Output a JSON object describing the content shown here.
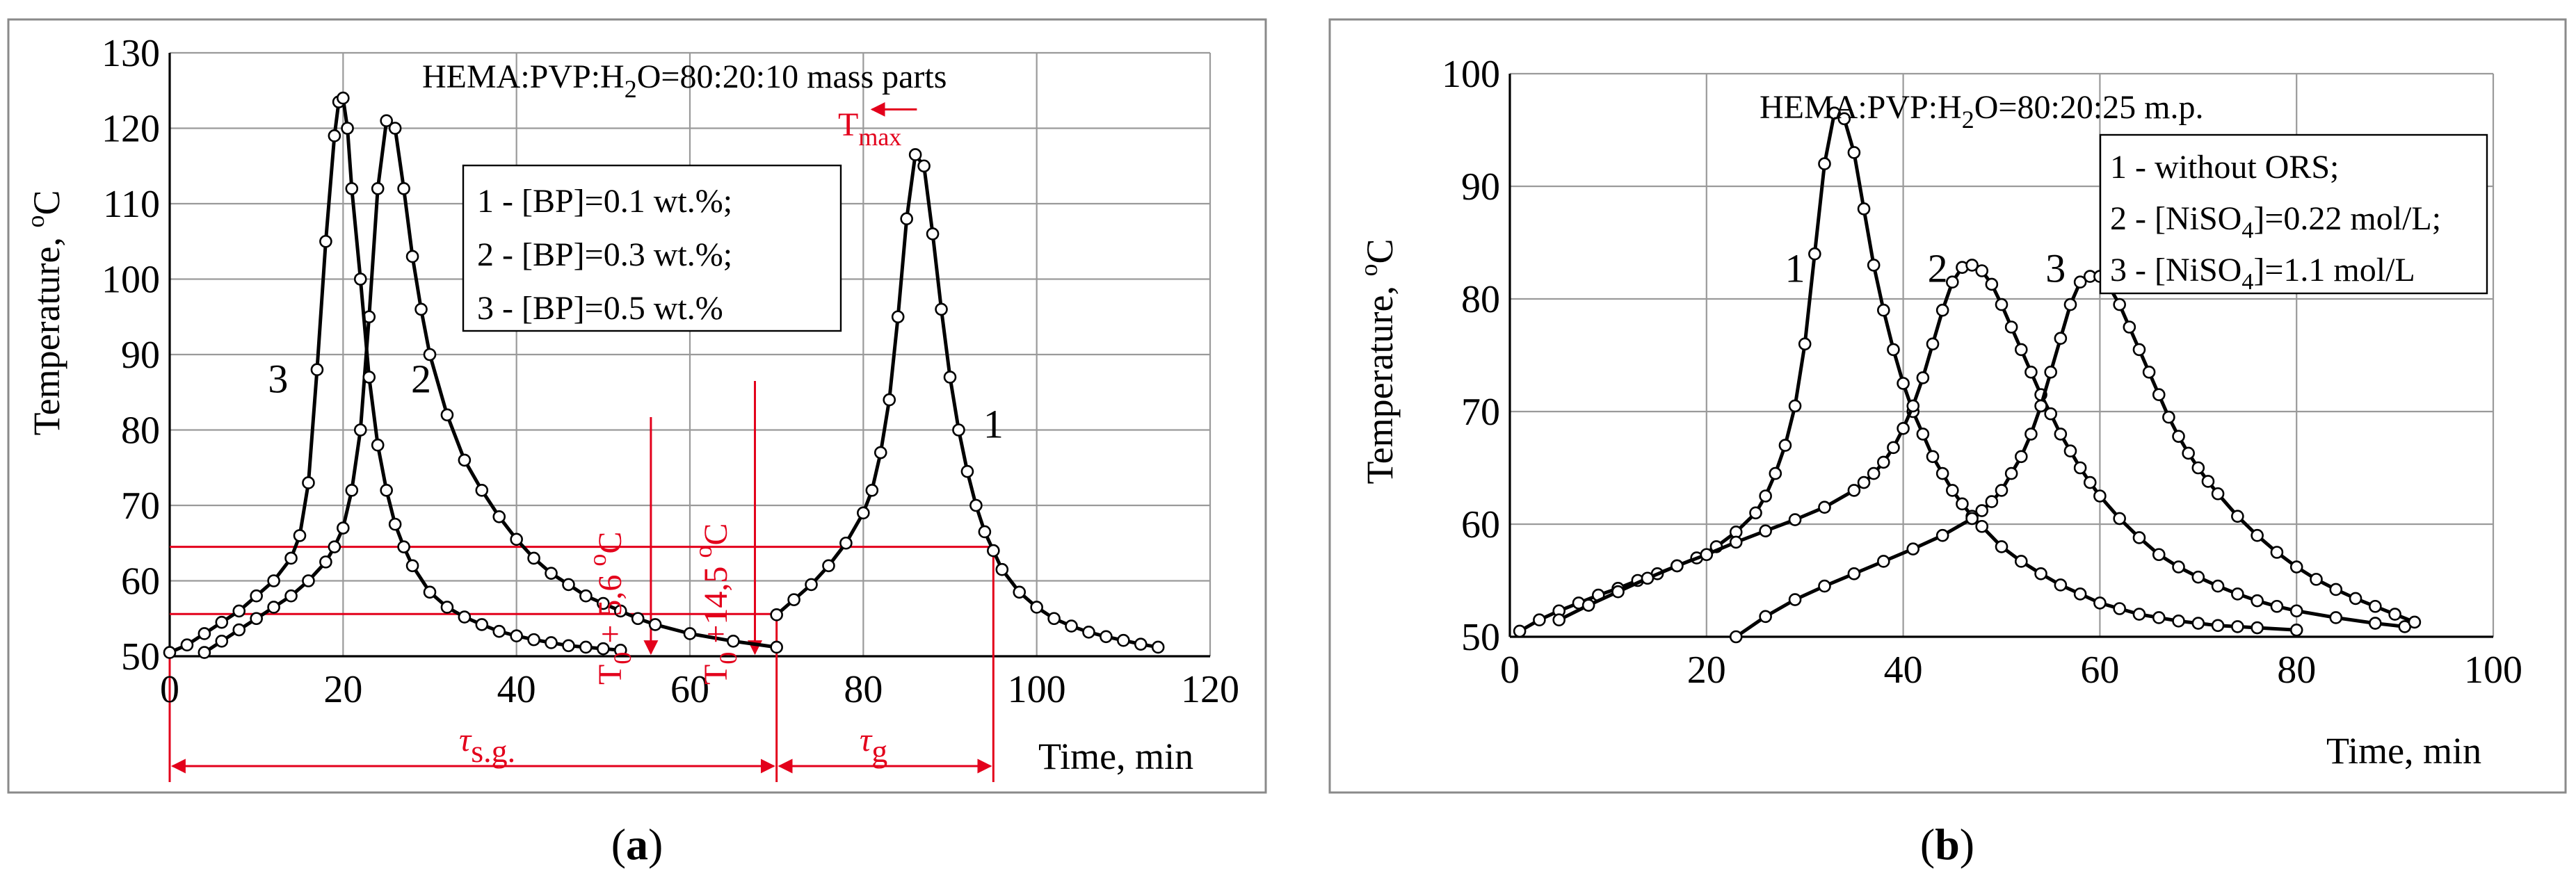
{
  "panels": [
    {
      "id": "a",
      "caption_pre": "(",
      "caption_letter": "a",
      "caption_post": ")",
      "title_pre": "HEMA:PVP:H",
      "title_sub": "2",
      "title_post": "O=80:20:10 mass parts",
      "ylabel_pre": "Temperature, ",
      "ylabel_sup": "o",
      "ylabel_post": "C",
      "xlabel": "Time, min",
      "x_ticks": [
        "0",
        "20",
        "40",
        "60",
        "80",
        "100",
        "120"
      ],
      "y_ticks": [
        "50",
        "60",
        "70",
        "80",
        "90",
        "100",
        "110",
        "120",
        "130"
      ],
      "legend": [
        "1 - [BP]=0.1 wt.%;",
        "2 - [BP]=0.3 wt.%;",
        "3 - [BP]=0.5 wt.%"
      ],
      "annotations": {
        "tmax_main": "T",
        "tmax_sub": "max",
        "t0_low_pre": "T",
        "t0_low_sub": "0",
        "t0_low_mid": " + 5,6 ",
        "t0_low_sup": "o",
        "t0_low_post": "C",
        "t0_high_pre": "T",
        "t0_high_sub": "0",
        "t0_high_mid": " +14,5 ",
        "t0_high_sup": "o",
        "t0_high_post": "C",
        "tau_sg_main": "τ",
        "tau_sg_sub": "s.g.",
        "tau_g_main": "τ",
        "tau_g_sub": "g"
      },
      "accent_color": "#e3001b"
    },
    {
      "id": "b",
      "caption_pre": "(",
      "caption_letter": "b",
      "caption_post": ")",
      "title_pre": "HEMA:PVP:H",
      "title_sub": "2",
      "title_post": "O=80:20:25 m.p.",
      "ylabel_pre": "Temperature, ",
      "ylabel_sup": "o",
      "ylabel_post": "C",
      "xlabel": "Time, min",
      "x_ticks": [
        "0",
        "20",
        "40",
        "60",
        "80",
        "100"
      ],
      "y_ticks": [
        "50",
        "60",
        "70",
        "80",
        "90",
        "100"
      ],
      "legend_1": "1 - without ORS;",
      "legend_2_pre": "2 - [NiSO",
      "legend_2_sub": "4",
      "legend_2_post": "]=0.22 mol/L;",
      "legend_3_pre": "3 - [NiSO",
      "legend_3_sub": "4",
      "legend_3_post": "]=1.1 mol/L"
    }
  ],
  "chart_data": [
    {
      "type": "line",
      "panel": "a",
      "title": "HEMA:PVP:H2O=80:20:10 mass parts",
      "xlabel": "Time, min",
      "ylabel": "Temperature, oC",
      "xlim": [
        0,
        120
      ],
      "ylim": [
        50,
        130
      ],
      "grid": true,
      "legend_position": "upper-middle",
      "series": [
        {
          "name": "1 - [BP]=0.1 wt.%;",
          "label": "1",
          "label_at": [
            95,
            79
          ],
          "x": [
            70,
            72,
            74,
            76,
            78,
            80,
            81,
            82,
            83,
            84,
            85,
            86,
            87,
            88,
            89,
            90,
            91,
            92,
            93,
            94,
            95,
            96,
            98,
            100,
            102,
            104,
            106,
            108,
            110,
            112,
            114
          ],
          "y": [
            55.5,
            57.5,
            59.5,
            62,
            65,
            69,
            72,
            77,
            84,
            95,
            108,
            116.5,
            115,
            106,
            96,
            87,
            80,
            74.5,
            70,
            66.5,
            64,
            61.5,
            58.5,
            56.5,
            55,
            54,
            53.2,
            52.6,
            52.1,
            51.6,
            51.2
          ]
        },
        {
          "name": "2 - [BP]=0.3 wt.%;",
          "label": "2",
          "label_at": [
            29,
            85
          ],
          "x": [
            4,
            6,
            8,
            10,
            12,
            14,
            16,
            18,
            19,
            20,
            21,
            22,
            23,
            24,
            25,
            26,
            27,
            28,
            29,
            30,
            32,
            34,
            36,
            38,
            40,
            42,
            44,
            46,
            48,
            50,
            52,
            54,
            56,
            60,
            65,
            70
          ],
          "y": [
            50.5,
            52,
            53.5,
            55,
            56.5,
            58,
            60,
            62.5,
            64.5,
            67,
            72,
            80,
            95,
            112,
            121,
            120,
            112,
            103,
            96,
            90,
            82,
            76,
            72,
            68.5,
            65.5,
            63,
            61,
            59.5,
            58,
            57,
            56,
            55,
            54.2,
            53,
            52,
            51.2
          ]
        },
        {
          "name": "3 - [BP]=0.5 wt.%",
          "label": "3",
          "label_at": [
            12.5,
            85
          ],
          "x": [
            0,
            2,
            4,
            6,
            8,
            10,
            12,
            14,
            15,
            16,
            17,
            18,
            19,
            19.5,
            20,
            20.5,
            21,
            22,
            23,
            24,
            25,
            26,
            27,
            28,
            30,
            32,
            34,
            36,
            38,
            40,
            42,
            44,
            46,
            48,
            50,
            52
          ],
          "y": [
            50.5,
            51.5,
            53,
            54.5,
            56,
            58,
            60,
            63,
            66,
            73,
            88,
            105,
            119,
            123.5,
            124,
            120,
            112,
            100,
            87,
            78,
            72,
            67.5,
            64.5,
            62,
            58.5,
            56.5,
            55.2,
            54.2,
            53.3,
            52.7,
            52.2,
            51.8,
            51.4,
            51.2,
            51,
            50.8
          ]
        }
      ]
    },
    {
      "type": "line",
      "panel": "b",
      "title": "HEMA:PVP:H2O=80:20:25 m.p.",
      "xlabel": "Time, min",
      "ylabel": "Temperature, oC",
      "xlim": [
        0,
        100
      ],
      "ylim": [
        50,
        100
      ],
      "grid": true,
      "legend_position": "upper-right",
      "series": [
        {
          "name": "1 - without ORS;",
          "label": "1",
          "label_at": [
            29,
            81.5
          ],
          "x": [
            1,
            3,
            5,
            7,
            9,
            11,
            13,
            15,
            17,
            19,
            21,
            23,
            25,
            26,
            27,
            28,
            29,
            30,
            31,
            32,
            33,
            34,
            35,
            36,
            37,
            38,
            39,
            40,
            41,
            42,
            43,
            44,
            45,
            46,
            47,
            48,
            50,
            52,
            54,
            56,
            58,
            60,
            62,
            64,
            66,
            68,
            70,
            72,
            74,
            76,
            80
          ],
          "y": [
            50.5,
            51.5,
            52.3,
            53,
            53.7,
            54.3,
            55,
            55.6,
            56.3,
            57,
            58,
            59.3,
            61,
            62.5,
            64.5,
            67,
            70.5,
            76,
            84,
            92,
            96.5,
            96,
            93,
            88,
            83,
            79,
            75.5,
            72.5,
            70,
            68,
            66,
            64.5,
            63,
            61.8,
            60.7,
            59.8,
            58,
            56.7,
            55.6,
            54.6,
            53.8,
            53,
            52.5,
            52,
            51.7,
            51.4,
            51.2,
            51,
            50.9,
            50.8,
            50.6
          ]
        },
        {
          "name": "2 - [NiSO4]=0.22 mol/L;",
          "label": "2",
          "label_at": [
            43.5,
            81.5
          ],
          "x": [
            5,
            8,
            11,
            14,
            17,
            20,
            23,
            26,
            29,
            32,
            35,
            36,
            37,
            38,
            39,
            40,
            41,
            42,
            43,
            44,
            45,
            46,
            47,
            48,
            49,
            50,
            51,
            52,
            53,
            54,
            55,
            56,
            57,
            58,
            59,
            60,
            62,
            64,
            66,
            68,
            70,
            72,
            74,
            76,
            78,
            80,
            84,
            88,
            91
          ],
          "y": [
            51.5,
            52.8,
            54,
            55.2,
            56.3,
            57.3,
            58.4,
            59.4,
            60.4,
            61.5,
            63,
            63.7,
            64.5,
            65.5,
            66.8,
            68.5,
            70.5,
            73,
            76,
            79,
            81.5,
            82.8,
            83,
            82.5,
            81.3,
            79.5,
            77.5,
            75.5,
            73.5,
            71.5,
            69.8,
            68,
            66.5,
            65,
            63.7,
            62.5,
            60.5,
            58.8,
            57.3,
            56.2,
            55.3,
            54.5,
            53.8,
            53.2,
            52.7,
            52.3,
            51.7,
            51.2,
            50.9
          ]
        },
        {
          "name": "3 - [NiSO4]=1.1 mol/L",
          "label": "3",
          "label_at": [
            55.5,
            81.5
          ],
          "x": [
            23,
            26,
            29,
            32,
            35,
            38,
            41,
            44,
            47,
            48,
            49,
            50,
            51,
            52,
            53,
            54,
            55,
            56,
            57,
            58,
            59,
            60,
            61,
            62,
            63,
            64,
            65,
            66,
            67,
            68,
            69,
            70,
            71,
            72,
            74,
            76,
            78,
            80,
            82,
            84,
            86,
            88,
            90,
            92
          ],
          "y": [
            50,
            51.8,
            53.3,
            54.5,
            55.6,
            56.7,
            57.8,
            59,
            60.5,
            61.2,
            62,
            63,
            64.5,
            66,
            68,
            70.5,
            73.5,
            76.5,
            79.5,
            81.5,
            82,
            82,
            81,
            79.5,
            77.5,
            75.5,
            73.5,
            71.5,
            69.5,
            67.8,
            66.3,
            65,
            63.8,
            62.7,
            60.7,
            59,
            57.5,
            56.2,
            55.1,
            54.2,
            53.4,
            52.7,
            52,
            51.3
          ]
        }
      ]
    }
  ]
}
